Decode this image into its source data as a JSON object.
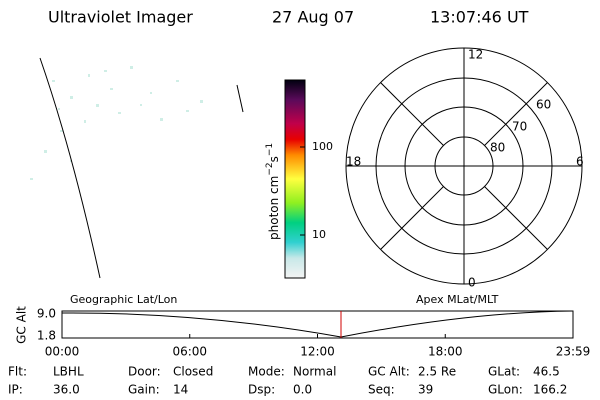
{
  "header": {
    "title": "Ultraviolet Imager",
    "date": "27 Aug 07",
    "time": "13:07:46 UT"
  },
  "colorbar": {
    "unit": [
      "photon cm",
      "−2",
      "s",
      "−1"
    ],
    "ticks": [
      "100",
      "10"
    ]
  },
  "polar": {
    "mlt_labels": [
      "12",
      "18",
      "6",
      "0"
    ],
    "lat_labels": [
      "60",
      "70",
      "80"
    ]
  },
  "altitude_plot": {
    "ylabel": "GC Alt",
    "left_title": "Geographic Lat/Lon",
    "right_title": "Apex MLat/MLT",
    "yticks": [
      "9.0",
      "1.8"
    ],
    "xticks": [
      "00:00",
      "06:00",
      "12:00",
      "18:00",
      "23:59"
    ]
  },
  "info": [
    [
      {
        "label": "Flt:",
        "value": "LBHL"
      },
      {
        "label": "Door:",
        "value": "Closed"
      },
      {
        "label": "Mode:",
        "value": "Normal"
      },
      {
        "label": "GC Alt:",
        "value": "2.5 Re"
      },
      {
        "label": "GLat:",
        "value": "46.5"
      }
    ],
    [
      {
        "label": "IP:",
        "value": "36.0"
      },
      {
        "label": "Gain:",
        "value": "14"
      },
      {
        "label": "Dsp:",
        "value": "0.0"
      },
      {
        "label": "Seq:",
        "value": "39"
      },
      {
        "label": "GLon:",
        "value": "166.2"
      }
    ]
  ]
}
